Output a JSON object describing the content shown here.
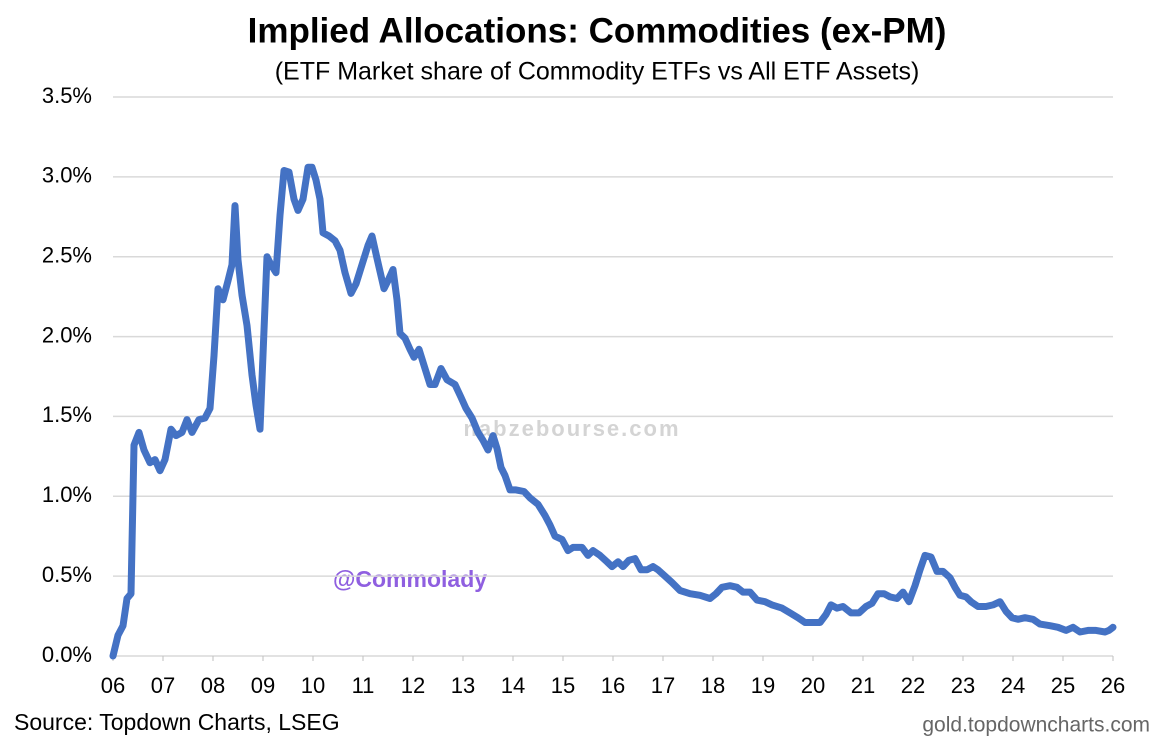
{
  "chart_data": {
    "type": "line",
    "title": "Implied Allocations: Commodities (ex-PM)",
    "subtitle": "(ETF Market share of Commodity ETFs vs All ETF Assets)",
    "source": "Source: Topdown Charts, LSEG",
    "credit": "gold.topdowncharts.com",
    "annotations": [
      "@Commolady",
      "nabzebourse.com"
    ],
    "color": "#4472c4",
    "grid": true,
    "xlim": [
      6,
      26
    ],
    "xticks": [
      {
        "value": 6,
        "label": "06"
      },
      {
        "value": 7,
        "label": "07"
      },
      {
        "value": 8,
        "label": "08"
      },
      {
        "value": 9,
        "label": "09"
      },
      10,
      11,
      12,
      13,
      14,
      15,
      16,
      17,
      18,
      19,
      20,
      21,
      22,
      23,
      24,
      25,
      26
    ],
    "ylim": [
      0,
      3.5
    ],
    "yticks": [
      {
        "value": 0,
        "label": "0.0%"
      },
      {
        "value": 0.5,
        "label": "0.5%"
      },
      {
        "value": 1,
        "label": "1.0%"
      },
      {
        "value": 1.5,
        "label": "1.5%"
      },
      {
        "value": 2,
        "label": "2.0%"
      },
      {
        "value": 2.5,
        "label": "2.5%"
      },
      {
        "value": 3,
        "label": "3.0%"
      },
      {
        "value": 3.5,
        "label": "3.5%"
      }
    ],
    "x": [
      6.0,
      6.1,
      6.2,
      6.28,
      6.36,
      6.42,
      6.52,
      6.62,
      6.74,
      6.84,
      6.94,
      7.04,
      7.16,
      7.26,
      7.38,
      7.48,
      7.58,
      7.72,
      7.84,
      7.94,
      8.02,
      8.1,
      8.2,
      8.3,
      8.38,
      8.44,
      8.5,
      8.58,
      8.68,
      8.78,
      8.86,
      8.94,
      9.02,
      9.08,
      9.16,
      9.26,
      9.34,
      9.42,
      9.52,
      9.62,
      9.7,
      9.8,
      9.9,
      9.98,
      10.06,
      10.14,
      10.2,
      10.32,
      10.44,
      10.54,
      10.64,
      10.76,
      10.86,
      10.98,
      11.1,
      11.18,
      11.28,
      11.42,
      11.5,
      11.6,
      11.68,
      11.74,
      11.84,
      11.94,
      12.02,
      12.12,
      12.22,
      12.34,
      12.44,
      12.56,
      12.68,
      12.84,
      12.96,
      13.06,
      13.18,
      13.3,
      13.4,
      13.5,
      13.6,
      13.68,
      13.76,
      13.84,
      13.94,
      14.06,
      14.22,
      14.34,
      14.5,
      14.64,
      14.74,
      14.84,
      14.98,
      15.1,
      15.2,
      15.38,
      15.5,
      15.6,
      15.74,
      15.88,
      15.98,
      16.1,
      16.2,
      16.32,
      16.44,
      16.56,
      16.68,
      16.8,
      16.9,
      17.04,
      17.18,
      17.34,
      17.54,
      17.74,
      17.94,
      18.06,
      18.18,
      18.34,
      18.48,
      18.6,
      18.74,
      18.88,
      19.04,
      19.18,
      19.38,
      19.54,
      19.7,
      19.84,
      20.0,
      20.14,
      20.26,
      20.36,
      20.48,
      20.6,
      20.76,
      20.92,
      21.06,
      21.18,
      21.3,
      21.42,
      21.54,
      21.68,
      21.8,
      21.92,
      22.04,
      22.14,
      22.24,
      22.36,
      22.48,
      22.6,
      22.74,
      22.84,
      22.94,
      23.06,
      23.16,
      23.3,
      23.46,
      23.6,
      23.74,
      23.86,
      23.98,
      24.1,
      24.24,
      24.4,
      24.54,
      24.74,
      24.9,
      25.06,
      25.2,
      25.34,
      25.5,
      25.66,
      25.84,
      25.92,
      26.0
    ],
    "values": [
      0.0,
      0.13,
      0.19,
      0.36,
      0.39,
      1.32,
      1.4,
      1.29,
      1.21,
      1.23,
      1.16,
      1.23,
      1.42,
      1.38,
      1.4,
      1.48,
      1.4,
      1.48,
      1.49,
      1.55,
      1.88,
      2.3,
      2.23,
      2.35,
      2.45,
      2.82,
      2.48,
      2.26,
      2.07,
      1.76,
      1.57,
      1.42,
      2.04,
      2.5,
      2.45,
      2.4,
      2.76,
      3.04,
      3.03,
      2.86,
      2.79,
      2.86,
      3.06,
      3.06,
      2.98,
      2.86,
      2.65,
      2.63,
      2.6,
      2.54,
      2.4,
      2.27,
      2.33,
      2.45,
      2.57,
      2.63,
      2.49,
      2.3,
      2.35,
      2.42,
      2.23,
      2.02,
      1.99,
      1.92,
      1.87,
      1.92,
      1.82,
      1.7,
      1.7,
      1.8,
      1.73,
      1.7,
      1.62,
      1.55,
      1.49,
      1.4,
      1.35,
      1.29,
      1.38,
      1.3,
      1.18,
      1.13,
      1.04,
      1.04,
      1.03,
      0.99,
      0.95,
      0.88,
      0.82,
      0.75,
      0.73,
      0.66,
      0.68,
      0.68,
      0.63,
      0.66,
      0.63,
      0.59,
      0.56,
      0.59,
      0.56,
      0.6,
      0.61,
      0.54,
      0.54,
      0.56,
      0.54,
      0.5,
      0.46,
      0.41,
      0.39,
      0.38,
      0.36,
      0.39,
      0.43,
      0.44,
      0.43,
      0.4,
      0.4,
      0.35,
      0.34,
      0.32,
      0.3,
      0.27,
      0.24,
      0.21,
      0.21,
      0.21,
      0.26,
      0.32,
      0.3,
      0.31,
      0.27,
      0.27,
      0.31,
      0.33,
      0.39,
      0.39,
      0.37,
      0.36,
      0.4,
      0.34,
      0.44,
      0.54,
      0.63,
      0.62,
      0.53,
      0.53,
      0.49,
      0.43,
      0.38,
      0.37,
      0.34,
      0.31,
      0.31,
      0.32,
      0.34,
      0.28,
      0.24,
      0.23,
      0.24,
      0.23,
      0.2,
      0.19,
      0.18,
      0.16,
      0.18,
      0.15,
      0.16,
      0.16,
      0.15,
      0.16,
      0.18
    ]
  }
}
